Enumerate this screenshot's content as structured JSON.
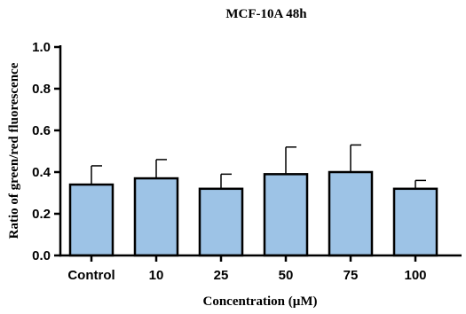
{
  "chart_data": {
    "type": "bar",
    "title": "MCF-10A 48h",
    "xlabel": "Concentration (µM)",
    "ylabel": "Ratio of green/red fluorescence",
    "categories": [
      "Control",
      "10",
      "25",
      "50",
      "75",
      "100"
    ],
    "values": [
      0.34,
      0.37,
      0.32,
      0.39,
      0.4,
      0.32
    ],
    "error_upper": [
      0.43,
      0.46,
      0.39,
      0.52,
      0.53,
      0.36
    ],
    "ylim": [
      0,
      1.0
    ],
    "yticks": [
      "0.0",
      "0.2",
      "0.4",
      "0.6",
      "0.8",
      "1.0"
    ],
    "ytick_values": [
      0,
      0.2,
      0.4,
      0.6,
      0.8,
      1.0
    ],
    "bar_color": "#9dc3e6",
    "grid": false,
    "legend": "none"
  }
}
